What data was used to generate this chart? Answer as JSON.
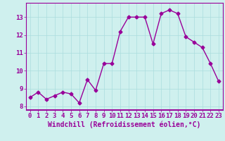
{
  "x": [
    0,
    1,
    2,
    3,
    4,
    5,
    6,
    7,
    8,
    9,
    10,
    11,
    12,
    13,
    14,
    15,
    16,
    17,
    18,
    19,
    20,
    21,
    22,
    23
  ],
  "y": [
    8.5,
    8.8,
    8.4,
    8.6,
    8.8,
    8.7,
    8.2,
    9.5,
    8.9,
    10.4,
    10.4,
    12.2,
    13.0,
    13.0,
    13.0,
    11.5,
    13.2,
    13.4,
    13.2,
    11.9,
    11.6,
    11.3,
    10.4,
    9.4
  ],
  "line_color": "#990099",
  "marker": "D",
  "marker_size": 2.5,
  "xlabel": "Windchill (Refroidissement éolien,°C)",
  "xlim": [
    -0.5,
    23.5
  ],
  "ylim": [
    7.8,
    13.8
  ],
  "yticks": [
    8,
    9,
    10,
    11,
    12,
    13
  ],
  "xticks": [
    0,
    1,
    2,
    3,
    4,
    5,
    6,
    7,
    8,
    9,
    10,
    11,
    12,
    13,
    14,
    15,
    16,
    17,
    18,
    19,
    20,
    21,
    22,
    23
  ],
  "background_color": "#cff0ee",
  "grid_color": "#aadddd",
  "tick_color": "#990099",
  "label_color": "#990099",
  "spine_color": "#990099",
  "xlabel_fontsize": 7.0,
  "tick_fontsize": 6.5,
  "bar_color": "#7700aa",
  "bar_height": 0.045
}
